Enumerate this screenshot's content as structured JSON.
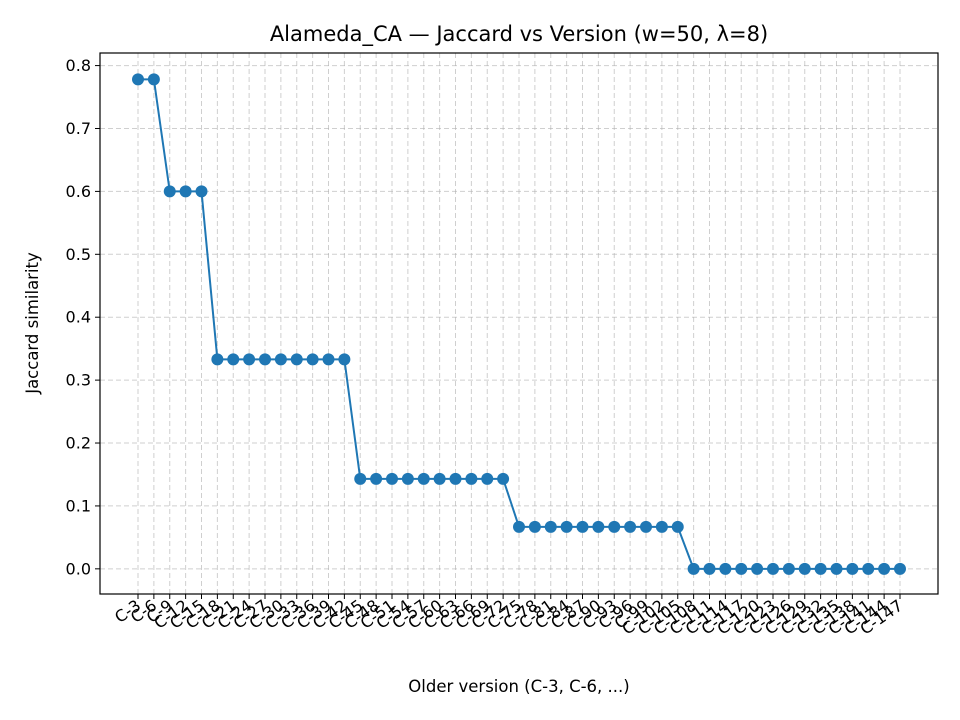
{
  "chart_data": {
    "type": "line",
    "title": "Alameda_CA — Jaccard vs Version (w=50, λ=8)",
    "xlabel": "Older version (C-3, C-6, ...)",
    "ylabel": "Jaccard similarity",
    "ylim": [
      -0.04,
      0.82
    ],
    "yticks": [
      "0.0",
      "0.1",
      "0.2",
      "0.3",
      "0.4",
      "0.5",
      "0.6",
      "0.7",
      "0.8"
    ],
    "grid": true,
    "grid_style": "dashed",
    "line_color": "#1f77b4",
    "categories": [
      "C-3",
      "C-6",
      "C-9",
      "C-12",
      "C-15",
      "C-18",
      "C-21",
      "C-24",
      "C-27",
      "C-30",
      "C-33",
      "C-36",
      "C-39",
      "C-42",
      "C-45",
      "C-48",
      "C-51",
      "C-54",
      "C-57",
      "C-60",
      "C-63",
      "C-66",
      "C-69",
      "C-72",
      "C-75",
      "C-78",
      "C-81",
      "C-84",
      "C-87",
      "C-90",
      "C-93",
      "C-96",
      "C-99",
      "C-102",
      "C-105",
      "C-108",
      "C-111",
      "C-114",
      "C-117",
      "C-120",
      "C-123",
      "C-126",
      "C-129",
      "C-132",
      "C-135",
      "C-138",
      "C-141",
      "C-144",
      "C-147"
    ],
    "series": [
      {
        "values": [
          0.778,
          0.778,
          0.6,
          0.6,
          0.6,
          0.333,
          0.333,
          0.333,
          0.333,
          0.333,
          0.333,
          0.333,
          0.333,
          0.333,
          0.143,
          0.143,
          0.143,
          0.143,
          0.143,
          0.143,
          0.143,
          0.143,
          0.143,
          0.143,
          0.0667,
          0.0667,
          0.0667,
          0.0667,
          0.0667,
          0.0667,
          0.0667,
          0.0667,
          0.0667,
          0.0667,
          0.0667,
          0,
          0,
          0,
          0,
          0,
          0,
          0,
          0,
          0,
          0,
          0,
          0,
          0,
          0
        ]
      }
    ]
  }
}
